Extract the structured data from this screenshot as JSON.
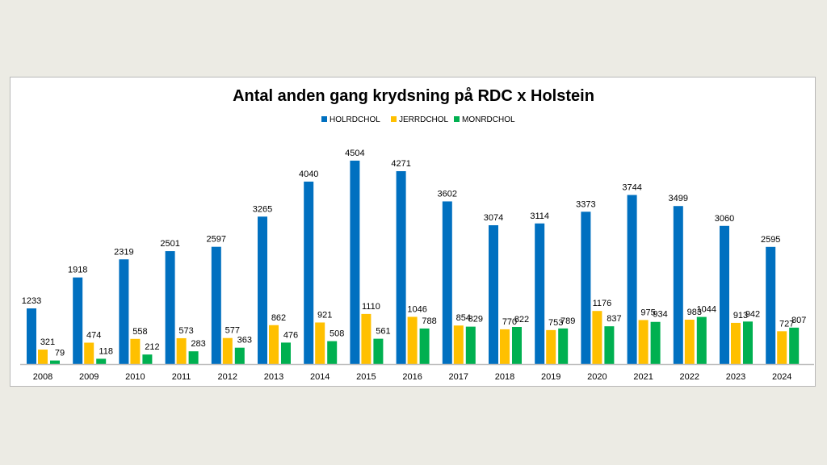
{
  "chart_data": {
    "type": "bar",
    "title": "Antal anden gang krydsning på RDC x Holstein",
    "categories": [
      "2008",
      "2009",
      "2010",
      "2011",
      "2012",
      "2013",
      "2014",
      "2015",
      "2016",
      "2017",
      "2018",
      "2019",
      "2020",
      "2021",
      "2022",
      "2023",
      "2024"
    ],
    "series": [
      {
        "name": "HOLRDCHOL",
        "color": "#0070c0",
        "values": [
          1233,
          1918,
          2319,
          2501,
          2597,
          3265,
          4040,
          4504,
          4271,
          3602,
          3074,
          3114,
          3373,
          3744,
          3499,
          3060,
          2595
        ]
      },
      {
        "name": "JERRDCHOL",
        "color": "#ffc000",
        "values": [
          321,
          474,
          558,
          573,
          577,
          862,
          921,
          1110,
          1046,
          854,
          770,
          753,
          1176,
          975,
          983,
          913,
          727
        ]
      },
      {
        "name": "MONRDCHOL",
        "color": "#00b050",
        "values": [
          79,
          118,
          212,
          283,
          363,
          476,
          508,
          561,
          788,
          829,
          822,
          789,
          837,
          934,
          1044,
          942,
          807
        ]
      }
    ],
    "legend": "top",
    "grid": false,
    "data_labels": true,
    "ylim": [
      0,
      4504
    ]
  }
}
